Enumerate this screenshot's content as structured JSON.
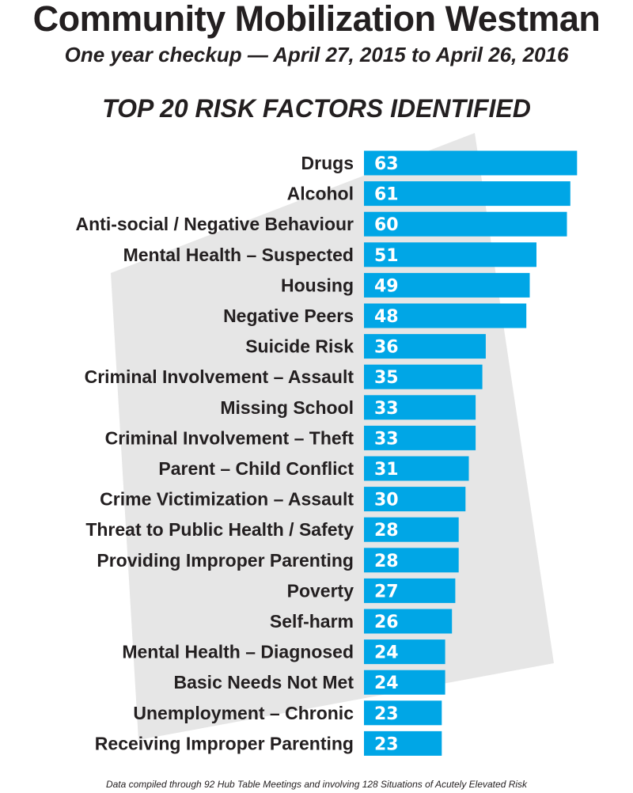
{
  "title": "Community Mobilization Westman",
  "subtitle": "One year checkup — April 27, 2015 to April 26, 2016",
  "footnote": "Data compiled through 92 Hub Table Meetings and involving 128 Situations of Acutely Elevated Risk",
  "colors": {
    "bar": "#00a6e6",
    "background_shape": "#e6e6e6",
    "text": "#231f20",
    "value_text": "#ffffff"
  },
  "chart_data": {
    "type": "bar",
    "orientation": "horizontal",
    "title": "TOP 20 RISK FACTORS IDENTIFIED",
    "xlabel": "",
    "ylabel": "",
    "xlim": [
      0,
      70
    ],
    "grid": false,
    "legend": "none",
    "categories": [
      "Drugs",
      "Alcohol",
      "Anti-social / Negative Behaviour",
      "Mental Health – Suspected",
      "Housing",
      "Negative Peers",
      "Suicide Risk",
      "Criminal Involvement – Assault",
      "Missing School",
      "Criminal Involvement – Theft",
      "Parent – Child Conflict",
      "Crime Victimization – Assault",
      "Threat to Public Health / Safety",
      "Providing Improper Parenting",
      "Poverty",
      "Self-harm",
      "Mental Health – Diagnosed",
      "Basic Needs Not Met",
      "Unemployment – Chronic",
      "Receiving Improper Parenting"
    ],
    "values": [
      63,
      61,
      60,
      51,
      49,
      48,
      36,
      35,
      33,
      33,
      31,
      30,
      28,
      28,
      27,
      26,
      24,
      24,
      23,
      23
    ]
  }
}
